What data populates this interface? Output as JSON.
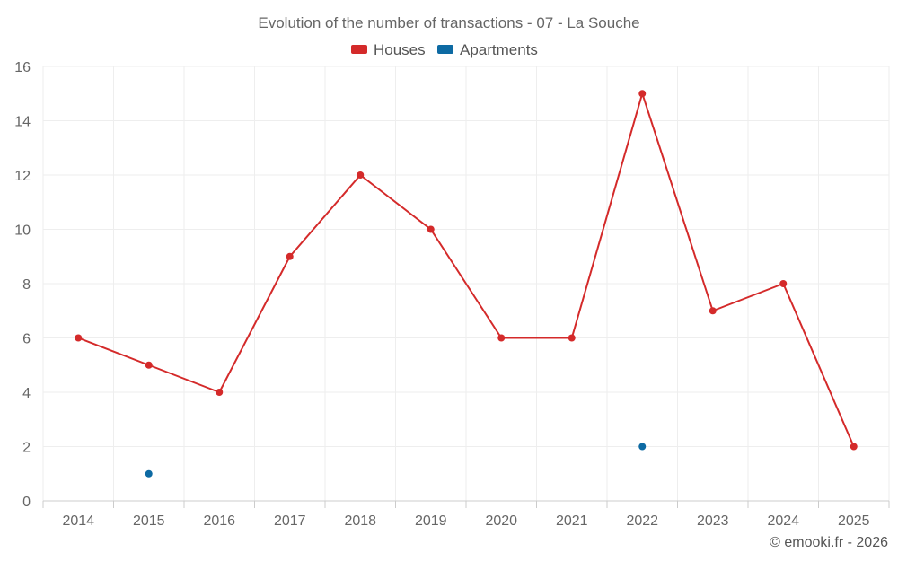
{
  "chart_data": {
    "type": "line",
    "title": "Evolution of the number of transactions - 07 - La Souche",
    "categories": [
      "2014",
      "2015",
      "2016",
      "2017",
      "2018",
      "2019",
      "2020",
      "2021",
      "2022",
      "2023",
      "2024",
      "2025"
    ],
    "series": [
      {
        "name": "Houses",
        "color": "#d42a2a",
        "values": [
          6,
          5,
          4,
          9,
          12,
          10,
          6,
          6,
          15,
          7,
          8,
          2
        ]
      },
      {
        "name": "Apartments",
        "color": "#0d6aa3",
        "values": [
          null,
          1,
          null,
          null,
          null,
          null,
          null,
          null,
          2,
          null,
          null,
          null
        ]
      }
    ],
    "ylim": [
      0,
      16
    ],
    "yticks": [
      0,
      2,
      4,
      6,
      8,
      10,
      12,
      14,
      16
    ],
    "xlabel": "",
    "ylabel": "",
    "grid": true,
    "legend_position": "top-center"
  },
  "credit": "© emooki.fr - 2026"
}
